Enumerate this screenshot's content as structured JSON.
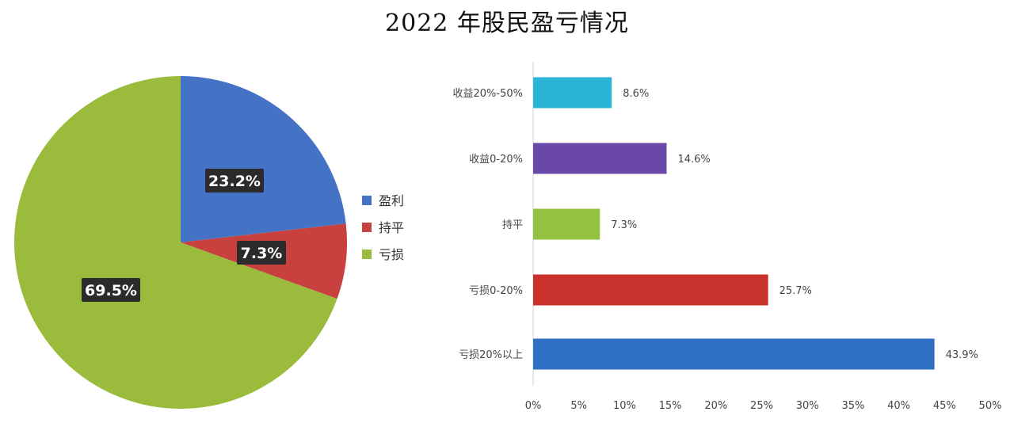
{
  "title": "2022 年股民盈亏情况",
  "chart_data": [
    {
      "type": "pie",
      "slices": [
        {
          "name": "盈利",
          "value": 23.2,
          "label": "23.2%",
          "color": "#4472c4"
        },
        {
          "name": "持平",
          "value": 7.3,
          "label": "7.3%",
          "color": "#c9413f"
        },
        {
          "name": "亏损",
          "value": 69.5,
          "label": "69.5%",
          "color": "#9bbb3c"
        }
      ],
      "legend_position": "right"
    },
    {
      "type": "bar",
      "orientation": "horizontal",
      "categories": [
        "收益20%-50%",
        "收益0-20%",
        "持平",
        "亏损0-20%",
        "亏损20%以上"
      ],
      "values": [
        8.6,
        14.6,
        7.3,
        25.7,
        43.9
      ],
      "value_labels": [
        "8.6%",
        "14.6%",
        "7.3%",
        "25.7%",
        "43.9%"
      ],
      "colors": [
        "#2ab5d8",
        "#6a48a8",
        "#93c140",
        "#c9312c",
        "#2f6fc4"
      ],
      "xlim": [
        0,
        50
      ],
      "xticks": [
        "0%",
        "5%",
        "10%",
        "15%",
        "20%",
        "25%",
        "30%",
        "35%",
        "40%",
        "45%",
        "50%"
      ]
    }
  ]
}
